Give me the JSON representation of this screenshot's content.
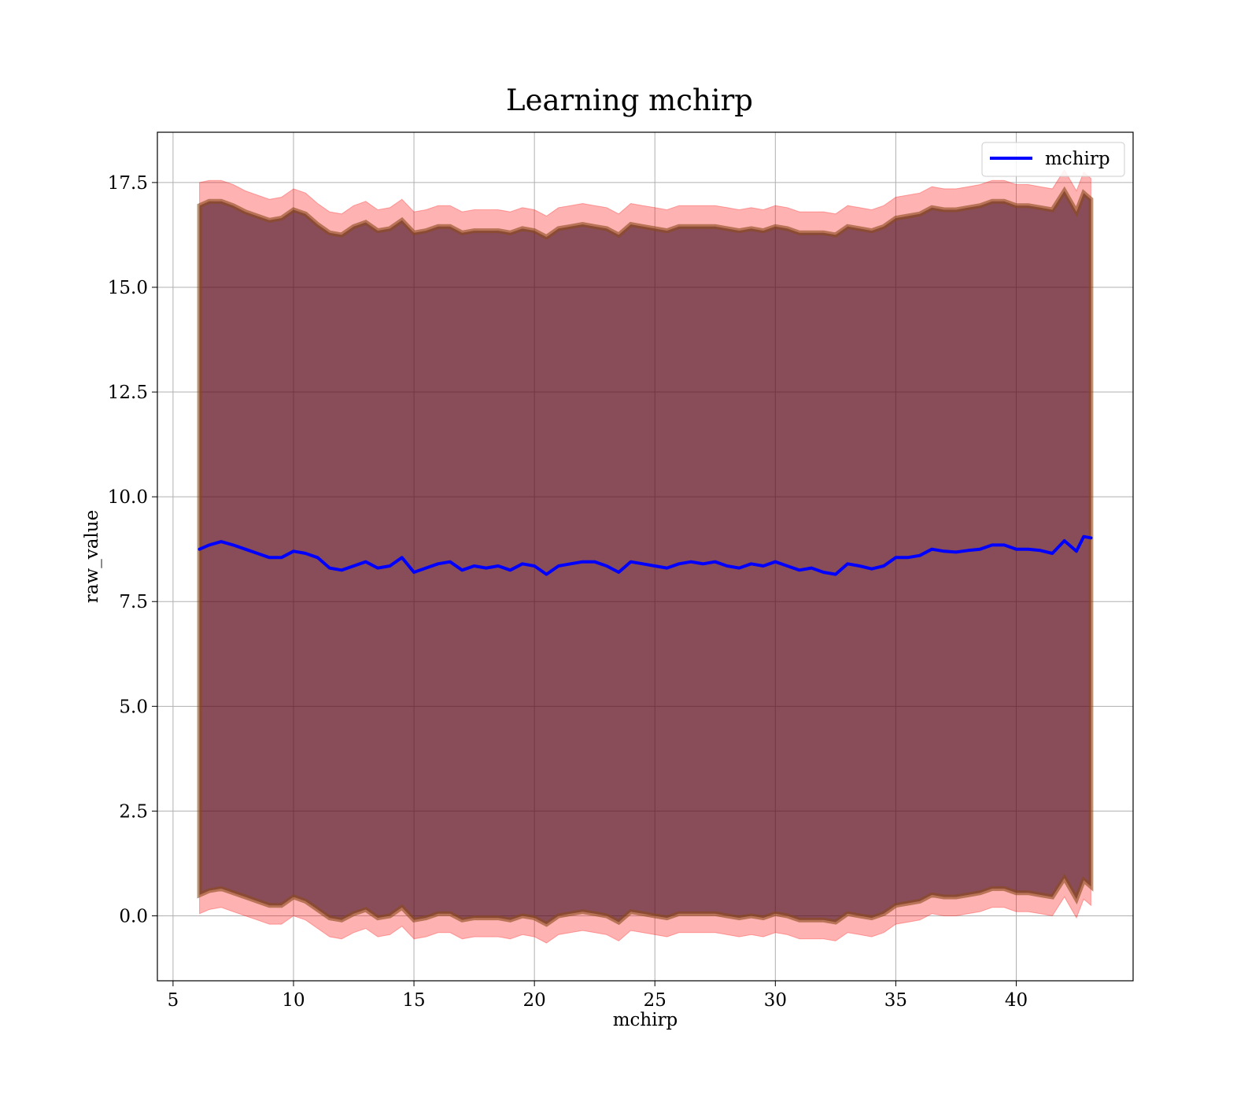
{
  "chart_data": {
    "type": "line",
    "title": "Learning mchirp",
    "xlabel": "mchirp",
    "ylabel": "raw_value",
    "xlim": [
      4.35,
      44.85
    ],
    "ylim": [
      -1.55,
      18.7
    ],
    "xticks": [
      5,
      10,
      15,
      20,
      25,
      30,
      35,
      40
    ],
    "xtick_labels": [
      "5",
      "10",
      "15",
      "20",
      "25",
      "30",
      "35",
      "40"
    ],
    "yticks": [
      0.0,
      2.5,
      5.0,
      7.5,
      10.0,
      12.5,
      15.0,
      17.5
    ],
    "ytick_labels": [
      "0.0",
      "2.5",
      "5.0",
      "7.5",
      "10.0",
      "12.5",
      "15.0",
      "17.5"
    ],
    "grid": true,
    "legend_position": "top-right",
    "colors": {
      "line": "#0000ff",
      "band_outer": "#ff0000",
      "band_inner": "#3b0a1e",
      "band_mid": "#8a4a1a"
    },
    "x": [
      6.1,
      6.5,
      7.0,
      7.5,
      8.0,
      8.5,
      9.0,
      9.5,
      10.0,
      10.5,
      11.0,
      11.5,
      12.0,
      12.5,
      13.0,
      13.5,
      14.0,
      14.5,
      15.0,
      15.5,
      16.0,
      16.5,
      17.0,
      17.5,
      18.0,
      18.5,
      19.0,
      19.5,
      20.0,
      20.5,
      21.0,
      21.5,
      22.0,
      22.5,
      23.0,
      23.5,
      24.0,
      24.5,
      25.0,
      25.5,
      26.0,
      26.5,
      27.0,
      27.5,
      28.0,
      28.5,
      29.0,
      29.5,
      30.0,
      30.5,
      31.0,
      31.5,
      32.0,
      32.5,
      33.0,
      33.5,
      34.0,
      34.5,
      35.0,
      35.5,
      36.0,
      36.5,
      37.0,
      37.5,
      38.0,
      38.5,
      39.0,
      39.5,
      40.0,
      40.5,
      41.0,
      41.5,
      42.0,
      42.5,
      42.8,
      43.1
    ],
    "series": [
      {
        "name": "mchirp",
        "values": [
          8.75,
          8.85,
          8.93,
          8.85,
          8.75,
          8.65,
          8.55,
          8.55,
          8.7,
          8.65,
          8.55,
          8.3,
          8.25,
          8.35,
          8.45,
          8.3,
          8.35,
          8.55,
          8.2,
          8.3,
          8.4,
          8.45,
          8.25,
          8.35,
          8.3,
          8.35,
          8.25,
          8.4,
          8.35,
          8.15,
          8.35,
          8.4,
          8.45,
          8.45,
          8.35,
          8.2,
          8.45,
          8.4,
          8.35,
          8.3,
          8.4,
          8.45,
          8.4,
          8.45,
          8.35,
          8.3,
          8.4,
          8.35,
          8.45,
          8.35,
          8.25,
          8.3,
          8.2,
          8.15,
          8.4,
          8.35,
          8.28,
          8.35,
          8.55,
          8.55,
          8.6,
          8.75,
          8.7,
          8.68,
          8.72,
          8.75,
          8.85,
          8.85,
          8.75,
          8.75,
          8.72,
          8.65,
          8.95,
          8.7,
          9.05,
          9.02
        ]
      }
    ],
    "band_upper_outer": [
      17.5,
      17.55,
      17.55,
      17.45,
      17.3,
      17.2,
      17.1,
      17.15,
      17.35,
      17.25,
      17.0,
      16.8,
      16.75,
      16.95,
      17.05,
      16.85,
      16.9,
      17.1,
      16.8,
      16.85,
      16.95,
      16.95,
      16.8,
      16.85,
      16.85,
      16.85,
      16.8,
      16.9,
      16.85,
      16.7,
      16.9,
      16.95,
      17.0,
      16.95,
      16.9,
      16.75,
      17.0,
      16.95,
      16.9,
      16.85,
      16.95,
      16.95,
      16.95,
      16.95,
      16.9,
      16.85,
      16.9,
      16.85,
      16.95,
      16.9,
      16.8,
      16.8,
      16.8,
      16.75,
      16.95,
      16.9,
      16.85,
      16.95,
      17.15,
      17.2,
      17.25,
      17.4,
      17.35,
      17.35,
      17.4,
      17.45,
      17.55,
      17.55,
      17.45,
      17.45,
      17.4,
      17.35,
      17.8,
      17.3,
      17.75,
      17.6
    ],
    "band_upper_inner": [
      16.95,
      17.05,
      17.05,
      16.95,
      16.8,
      16.7,
      16.6,
      16.65,
      16.85,
      16.75,
      16.5,
      16.3,
      16.25,
      16.45,
      16.55,
      16.35,
      16.4,
      16.6,
      16.3,
      16.35,
      16.45,
      16.45,
      16.3,
      16.35,
      16.35,
      16.35,
      16.3,
      16.4,
      16.35,
      16.2,
      16.4,
      16.45,
      16.5,
      16.45,
      16.4,
      16.25,
      16.5,
      16.45,
      16.4,
      16.35,
      16.45,
      16.45,
      16.45,
      16.45,
      16.4,
      16.35,
      16.4,
      16.35,
      16.45,
      16.4,
      16.3,
      16.3,
      16.3,
      16.25,
      16.45,
      16.4,
      16.35,
      16.45,
      16.65,
      16.7,
      16.75,
      16.9,
      16.85,
      16.85,
      16.9,
      16.95,
      17.05,
      17.05,
      16.95,
      16.95,
      16.9,
      16.85,
      17.3,
      16.8,
      17.25,
      17.1
    ],
    "band_lower_inner": [
      0.5,
      0.6,
      0.65,
      0.55,
      0.45,
      0.35,
      0.25,
      0.25,
      0.45,
      0.35,
      0.15,
      -0.05,
      -0.1,
      0.05,
      0.15,
      -0.05,
      0.0,
      0.2,
      -0.1,
      -0.05,
      0.05,
      0.05,
      -0.1,
      -0.05,
      -0.05,
      -0.05,
      -0.1,
      0.0,
      -0.05,
      -0.2,
      0.0,
      0.05,
      0.1,
      0.05,
      0.0,
      -0.15,
      0.1,
      0.05,
      0.0,
      -0.05,
      0.05,
      0.05,
      0.05,
      0.05,
      0.0,
      -0.05,
      0.0,
      -0.05,
      0.05,
      0.0,
      -0.1,
      -0.1,
      -0.1,
      -0.15,
      0.05,
      0.0,
      -0.05,
      0.05,
      0.25,
      0.3,
      0.35,
      0.5,
      0.45,
      0.45,
      0.5,
      0.55,
      0.65,
      0.65,
      0.55,
      0.55,
      0.5,
      0.45,
      0.9,
      0.4,
      0.85,
      0.7
    ],
    "band_lower_outer": [
      0.05,
      0.15,
      0.2,
      0.1,
      0.0,
      -0.1,
      -0.2,
      -0.2,
      0.0,
      -0.1,
      -0.3,
      -0.5,
      -0.55,
      -0.4,
      -0.3,
      -0.5,
      -0.45,
      -0.25,
      -0.55,
      -0.5,
      -0.4,
      -0.4,
      -0.55,
      -0.5,
      -0.5,
      -0.5,
      -0.55,
      -0.45,
      -0.5,
      -0.65,
      -0.45,
      -0.4,
      -0.35,
      -0.4,
      -0.45,
      -0.6,
      -0.35,
      -0.4,
      -0.45,
      -0.5,
      -0.4,
      -0.4,
      -0.4,
      -0.4,
      -0.45,
      -0.5,
      -0.45,
      -0.5,
      -0.4,
      -0.45,
      -0.55,
      -0.55,
      -0.55,
      -0.6,
      -0.4,
      -0.45,
      -0.5,
      -0.4,
      -0.2,
      -0.15,
      -0.1,
      0.05,
      0.0,
      0.0,
      0.05,
      0.1,
      0.2,
      0.2,
      0.1,
      0.1,
      0.05,
      0.0,
      0.45,
      -0.05,
      0.4,
      0.25
    ]
  }
}
